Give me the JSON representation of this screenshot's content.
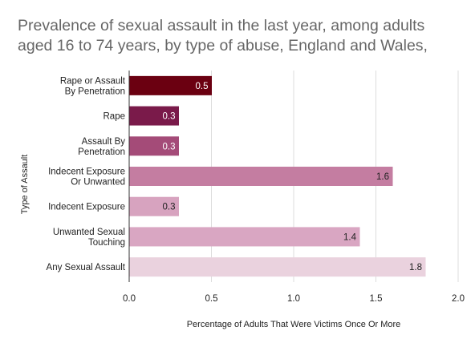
{
  "chart_data": {
    "type": "bar",
    "orientation": "horizontal",
    "title_lines": [
      "Prevalence of sexual assault in the last year, among adults",
      "aged 16 to 74 years, by type of abuse, England and Wales,"
    ],
    "ylabel": "Type of Assault",
    "xlabel": "Percentage of Adults That Were Victims Once Or More",
    "xlim": [
      0,
      2.0
    ],
    "xticks": [
      "0.0",
      "0.5",
      "1.0",
      "1.5",
      "2.0"
    ],
    "xtick_values": [
      0,
      0.5,
      1.0,
      1.5,
      2.0
    ],
    "grid": "vertical",
    "legend": "none",
    "categories": [
      [
        "Rape or Assault",
        "By Penetration"
      ],
      [
        "Rape"
      ],
      [
        "Assault By",
        "Penetration"
      ],
      [
        "Indecent Exposure",
        "Or Unwanted"
      ],
      [
        "Indecent Exposure"
      ],
      [
        "Unwanted Sexual",
        "Touching"
      ],
      [
        "Any Sexual Assault"
      ]
    ],
    "values": [
      0.5,
      0.3,
      0.3,
      1.6,
      0.3,
      1.4,
      1.8
    ],
    "value_labels": [
      "0.5",
      "0.3",
      "0.3",
      "1.6",
      "0.3",
      "1.4",
      "1.8"
    ],
    "bar_colors": [
      "#6b0011",
      "#7a1a4a",
      "#a44b78",
      "#c47da1",
      "#d7a3bf",
      "#d9a6c2",
      "#ead2de"
    ],
    "label_colors": [
      "#ffffff",
      "#ffffff",
      "#ffffff",
      "#222222",
      "#222222",
      "#222222",
      "#222222"
    ]
  }
}
